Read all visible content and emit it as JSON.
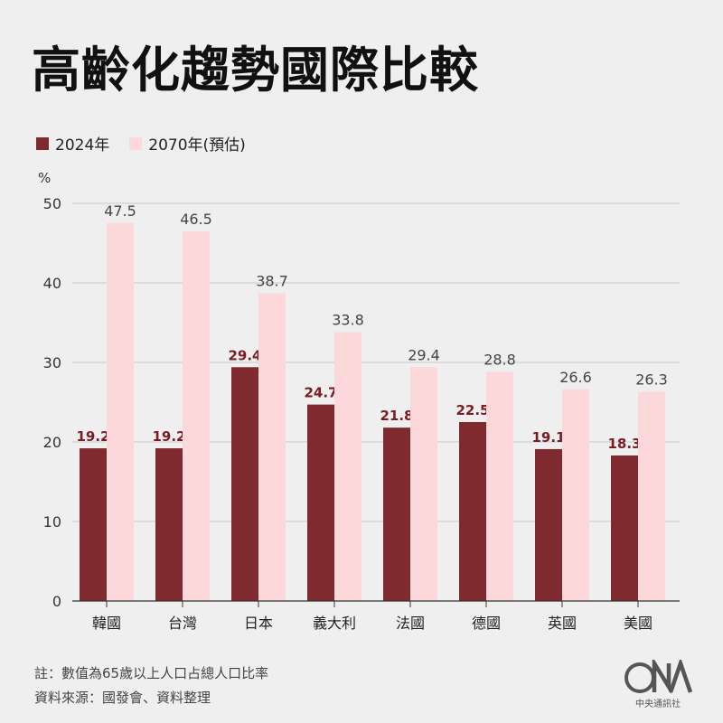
{
  "title": "高齡化趨勢國際比較",
  "legend": [
    {
      "label": "2024年",
      "color": "#7f2a2e"
    },
    {
      "label": "2070年(預估)",
      "color": "#fdd8da"
    }
  ],
  "notes": {
    "line1": "註：數值為65歲以上人口占總人口比率",
    "line2": "資料來源：國發會、資料整理"
  },
  "logo": {
    "text": "CNA",
    "subtitle": "中央通訊社"
  },
  "chart_data": {
    "type": "bar",
    "ylabel": "%",
    "ylim": [
      0,
      50
    ],
    "yticks": [
      0,
      10,
      20,
      30,
      40,
      50
    ],
    "grid": true,
    "categories": [
      "韓國",
      "台灣",
      "日本",
      "義大利",
      "法國",
      "德國",
      "英國",
      "美國"
    ],
    "series": [
      {
        "name": "2024年",
        "color": "#7f2a2e",
        "label_color": "#7a1c22",
        "values": [
          19.2,
          19.2,
          29.4,
          24.7,
          21.8,
          22.5,
          19.1,
          18.3
        ]
      },
      {
        "name": "2070年(預估)",
        "color": "#fdd8da",
        "label_color": "#444444",
        "values": [
          47.5,
          46.5,
          38.7,
          33.8,
          29.4,
          28.8,
          26.6,
          26.3
        ]
      }
    ]
  }
}
